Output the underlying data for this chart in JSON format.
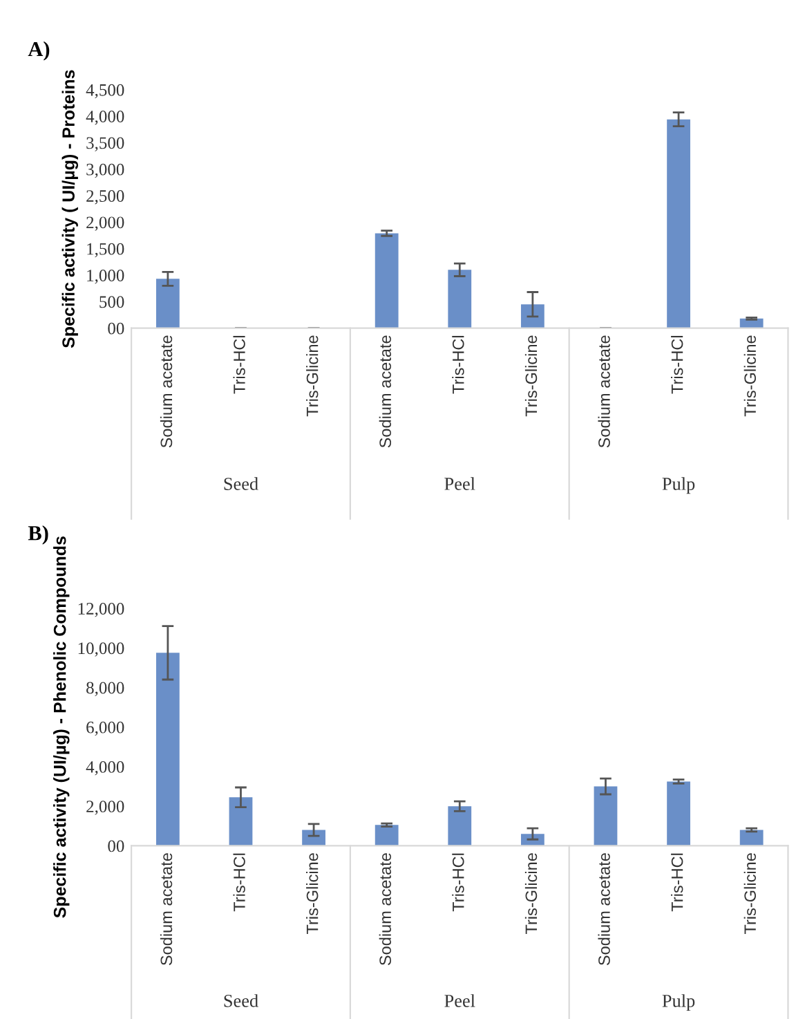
{
  "chart_data": [
    {
      "type": "bar",
      "title": "A)",
      "ylabel": "Specific activity ( UI/µg) - Proteins",
      "categories": [
        "Sodium acetate",
        "Tris-HCl",
        "Tris-Glicine",
        "Sodium acetate",
        "Tris-HCl",
        "Tris-Glicine",
        "Sodium acetate",
        "Tris-HCl",
        "Tris-Glicine"
      ],
      "values": [
        930,
        0,
        0,
        1790,
        1100,
        450,
        0,
        3940,
        180
      ],
      "errors": [
        130,
        null,
        null,
        50,
        120,
        230,
        null,
        130,
        20
      ],
      "color": "#6a8fc8",
      "ylim": [
        0,
        4500
      ],
      "yticks": [
        {
          "value": 0,
          "label": "00"
        },
        500,
        {
          "value": 1000,
          "label": "1,000"
        },
        {
          "value": 1500,
          "label": "1,500"
        },
        {
          "value": 2000,
          "label": "2,000"
        },
        {
          "value": 2500,
          "label": "2,500"
        },
        {
          "value": 3000,
          "label": "3,000"
        },
        {
          "value": 3500,
          "label": "3,500"
        },
        {
          "value": 4000,
          "label": "4,000"
        },
        {
          "value": 4500,
          "label": "4,500"
        }
      ],
      "annotations": [
        "Seed",
        "Peel",
        "Pulp"
      ],
      "grid": false,
      "legend": false
    },
    {
      "type": "bar",
      "title": "B)",
      "ylabel": "Specific activity (UI/µg) - Phenolic Compounds",
      "categories": [
        "Sodium acetate",
        "Tris-HCl",
        "Tris-Glicine",
        "Sodium acetate",
        "Tris-HCl",
        "Tris-Glicine",
        "Sodium acetate",
        "Tris-HCl",
        "Tris-Glicine"
      ],
      "values": [
        9750,
        2450,
        800,
        1050,
        2000,
        600,
        3000,
        3250,
        800
      ],
      "errors": [
        1350,
        500,
        300,
        80,
        250,
        280,
        400,
        100,
        80
      ],
      "color": "#6a8fc8",
      "ylim": [
        0,
        12000
      ],
      "yticks": [
        {
          "value": 0,
          "label": "00"
        },
        {
          "value": 2000,
          "label": "2,000"
        },
        {
          "value": 4000,
          "label": "4,000"
        },
        {
          "value": 6000,
          "label": "6,000"
        },
        {
          "value": 8000,
          "label": "8,000"
        },
        {
          "value": 10000,
          "label": "10,000"
        },
        {
          "value": 12000,
          "label": "12,000"
        }
      ],
      "annotations": [
        "Seed",
        "Peel",
        "Pulp"
      ],
      "grid": false,
      "legend": false
    }
  ]
}
